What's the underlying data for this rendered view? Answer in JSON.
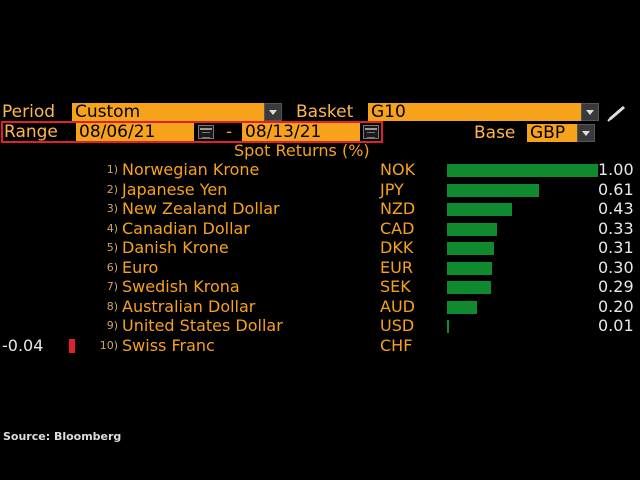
{
  "period": {
    "label": "Period",
    "value": "Custom"
  },
  "basket": {
    "label": "Basket",
    "value": "G10"
  },
  "range": {
    "label": "Range",
    "start": "08/06/21",
    "separator": "-",
    "end": "08/13/21"
  },
  "base": {
    "label": "Base",
    "value": "GBP"
  },
  "chart_title": "Spot Returns (%)",
  "chart_data": {
    "type": "bar",
    "title": "Spot Returns (%)",
    "categories": [
      "Norwegian Krone",
      "Japanese Yen",
      "New Zealand Dollar",
      "Canadian Dollar",
      "Danish Krone",
      "Euro",
      "Swedish Krona",
      "Australian Dollar",
      "United States Dollar",
      "Swiss Franc"
    ],
    "values": [
      1.0,
      0.61,
      0.43,
      0.33,
      0.31,
      0.3,
      0.29,
      0.2,
      0.01,
      -0.04
    ],
    "colors": {
      "positive": "#0f8a2e",
      "negative": "#e0202a"
    }
  },
  "rows": [
    {
      "rank": "1)",
      "name": "Norwegian Krone",
      "code": "NOK",
      "value": "1.00"
    },
    {
      "rank": "2)",
      "name": "Japanese Yen",
      "code": "JPY",
      "value": "0.61"
    },
    {
      "rank": "3)",
      "name": "New Zealand Dollar",
      "code": "NZD",
      "value": "0.43"
    },
    {
      "rank": "4)",
      "name": "Canadian Dollar",
      "code": "CAD",
      "value": "0.33"
    },
    {
      "rank": "5)",
      "name": "Danish Krone",
      "code": "DKK",
      "value": "0.31"
    },
    {
      "rank": "6)",
      "name": "Euro",
      "code": "EUR",
      "value": "0.30"
    },
    {
      "rank": "7)",
      "name": "Swedish Krona",
      "code": "SEK",
      "value": "0.29"
    },
    {
      "rank": "8)",
      "name": "Australian Dollar",
      "code": "AUD",
      "value": "0.20"
    },
    {
      "rank": "9)",
      "name": "United States Dollar",
      "code": "USD",
      "value": "0.01"
    },
    {
      "rank": "10)",
      "name": "Swiss Franc",
      "code": "CHF",
      "value": "-0.04"
    }
  ],
  "source": "Source: Bloomberg"
}
